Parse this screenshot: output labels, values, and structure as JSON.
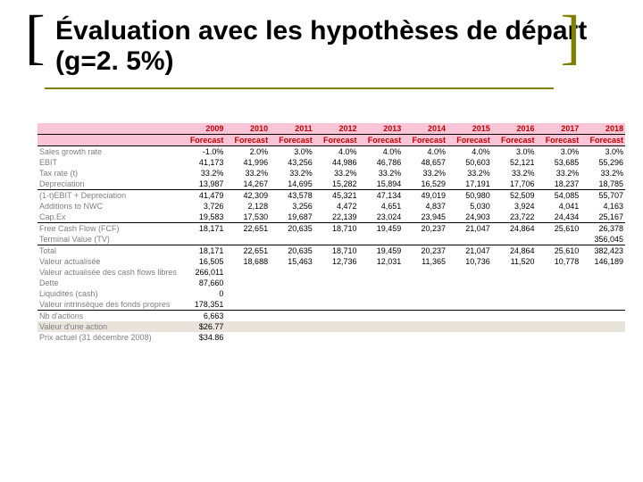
{
  "title": "Évaluation avec les hypothèses de départ (g=2. 5%)",
  "colors": {
    "header_bg": "#fbc5d8",
    "header_text": "#c00000",
    "label_text": "#7f7f7f",
    "border": "#000000",
    "highlight_bg": "#e8e4dc",
    "bracket_left": "#000000",
    "bracket_right": "#808000",
    "underline": "#808000"
  },
  "years": [
    "2009",
    "2010",
    "2011",
    "2012",
    "2013",
    "2014",
    "2015",
    "2016",
    "2017",
    "2018"
  ],
  "subheader": "Forecast",
  "rows": [
    {
      "label": "Sales growth rate",
      "vals": [
        "-1.0%",
        "2.0%",
        "3.0%",
        "4.0%",
        "4.0%",
        "4.0%",
        "4.0%",
        "3.0%",
        "3.0%",
        "3.0%"
      ],
      "sep": true
    },
    {
      "label": "EBIT",
      "vals": [
        "41,173",
        "41,996",
        "43,256",
        "44,986",
        "46,786",
        "48,657",
        "50,603",
        "52,121",
        "53,685",
        "55,296"
      ]
    },
    {
      "label": "Tax rate (t)",
      "vals": [
        "33.2%",
        "33.2%",
        "33.2%",
        "33.2%",
        "33.2%",
        "33.2%",
        "33.2%",
        "33.2%",
        "33.2%",
        "33.2%"
      ]
    },
    {
      "label": "Depreciation",
      "vals": [
        "13,987",
        "14,267",
        "14,695",
        "15,282",
        "15,894",
        "16,529",
        "17,191",
        "17,706",
        "18,237",
        "18,785"
      ]
    },
    {
      "label": "(1-t)EBIT + Depreciation",
      "vals": [
        "41,479",
        "42,309",
        "43,578",
        "45,321",
        "47,134",
        "49,019",
        "50,980",
        "52,509",
        "54,085",
        "55,707"
      ],
      "sep": true
    },
    {
      "label": "Additions to NWC",
      "vals": [
        "3,726",
        "2,128",
        "3,256",
        "4,472",
        "4,651",
        "4,837",
        "5,030",
        "3,924",
        "4,041",
        "4,163"
      ]
    },
    {
      "label": "Cap.Ex",
      "vals": [
        "19,583",
        "17,530",
        "19,687",
        "22,139",
        "23,024",
        "23,945",
        "24,903",
        "23,722",
        "24,434",
        "25,167"
      ]
    },
    {
      "label": "Free Cash Flow (FCF)",
      "vals": [
        "18,171",
        "22,651",
        "20,635",
        "18,710",
        "19,459",
        "20,237",
        "21,047",
        "24,864",
        "25,610",
        "26,378"
      ],
      "sep": true
    },
    {
      "label": "Terminal Value (TV)",
      "vals": [
        "",
        "",
        "",
        "",
        "",
        "",
        "",
        "",
        "",
        "356,045"
      ]
    },
    {
      "label": "Total",
      "vals": [
        "18,171",
        "22,651",
        "20,635",
        "18,710",
        "19,459",
        "20,237",
        "21,047",
        "24,864",
        "25,610",
        "382,423"
      ],
      "sep": true
    },
    {
      "label": "Valeur actualisée",
      "vals": [
        "16,505",
        "18,688",
        "15,463",
        "12,736",
        "12,031",
        "11,365",
        "10,736",
        "11,520",
        "10,778",
        "146,189"
      ]
    },
    {
      "label": "Valeur actualisée des cash flows libres",
      "vals": [
        "266,011",
        "",
        "",
        "",
        "",
        "",
        "",
        "",
        "",
        ""
      ]
    },
    {
      "label": "Dette",
      "vals": [
        "87,660",
        "",
        "",
        "",
        "",
        "",
        "",
        "",
        "",
        ""
      ]
    },
    {
      "label": "Liquidités (cash)",
      "vals": [
        "0",
        "",
        "",
        "",
        "",
        "",
        "",
        "",
        "",
        ""
      ]
    },
    {
      "label": "Valeur intrinsèque des fonds propres",
      "vals": [
        "178,351",
        "",
        "",
        "",
        "",
        "",
        "",
        "",
        "",
        ""
      ]
    },
    {
      "label": "Nb d'actions",
      "vals": [
        "6,663",
        "",
        "",
        "",
        "",
        "",
        "",
        "",
        "",
        ""
      ],
      "sep": true
    },
    {
      "label": "Valeur d'une action",
      "vals": [
        "$26.77",
        "",
        "",
        "",
        "",
        "",
        "",
        "",
        "",
        ""
      ],
      "hl": true
    },
    {
      "label": "Prix actuel (31 décembre 2008)",
      "vals": [
        "$34.86",
        "",
        "",
        "",
        "",
        "",
        "",
        "",
        "",
        ""
      ]
    }
  ]
}
